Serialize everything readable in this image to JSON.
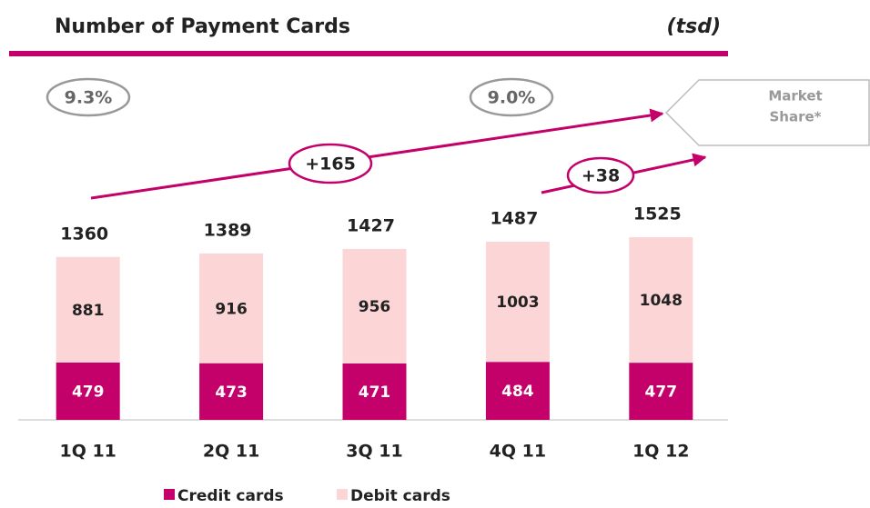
{
  "chart_data": {
    "type": "stacked-bar",
    "title": "Number of Payment Cards",
    "unit": "(tsd)",
    "categories": [
      "1Q 11",
      "2Q 11",
      "3Q 11",
      "4Q 11",
      "1Q 12"
    ],
    "series": [
      {
        "name": "Credit cards",
        "color": "#c4006b",
        "values": [
          479,
          473,
          471,
          484,
          477
        ]
      },
      {
        "name": "Debit cards",
        "color": "#fcd6d6",
        "values": [
          881,
          916,
          956,
          1003,
          1048
        ]
      }
    ],
    "totals": [
      1360,
      1389,
      1427,
      1487,
      1525
    ],
    "ylim": [
      0,
      2000
    ],
    "annotations": {
      "market_share_label": "Market Share*",
      "market_share_start": "9.3%",
      "market_share_end": "9.0%",
      "growth_year": "+165",
      "growth_quarter": "+38"
    }
  }
}
